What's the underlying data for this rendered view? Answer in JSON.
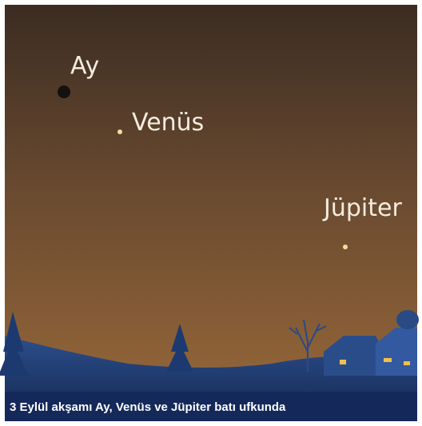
{
  "labels": {
    "moon": "Ay",
    "venus": "Venüs",
    "jupiter": "Jüpiter"
  },
  "caption": "3 Eylül akşamı Ay, Venüs ve Jüpiter batı ufkunda"
}
